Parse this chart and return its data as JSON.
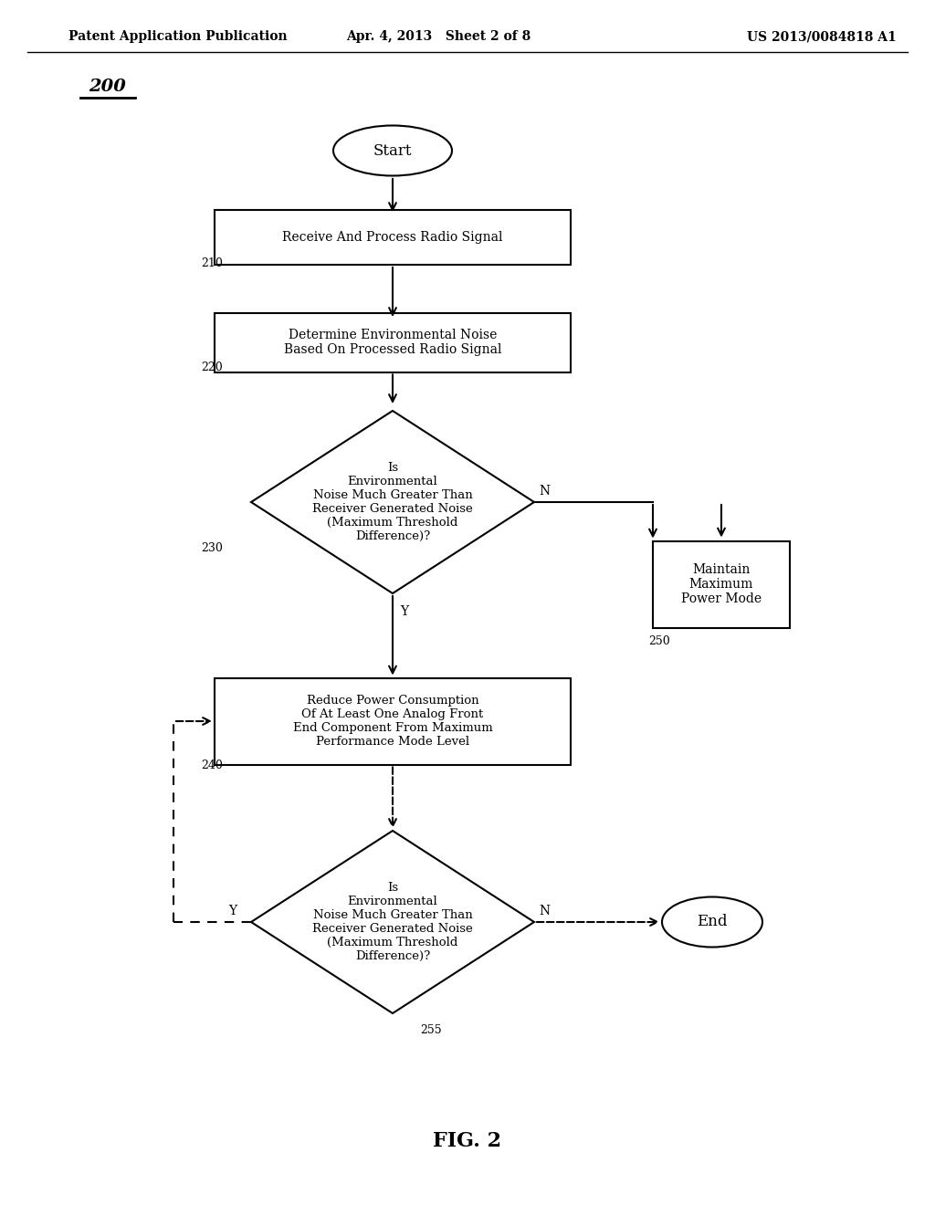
{
  "bg_color": "#ffffff",
  "header_left": "Patent Application Publication",
  "header_mid": "Apr. 4, 2013   Sheet 2 of 8",
  "header_right": "US 2013/0084818 A1",
  "fig_label": "200",
  "footer_label": "FIG. 2",
  "start_text": "Start",
  "box210_text": "Receive And Process Radio Signal",
  "box210_label": "210",
  "box220_text": "Determine Environmental Noise\nBased On Processed Radio Signal",
  "box220_label": "220",
  "diamond230_text": "Is\nEnvironmental\nNoise Much Greater Than\nReceiver Generated Noise\n(Maximum Threshold\nDifference)?",
  "diamond230_label": "230",
  "box250_text": "Maintain\nMaximum\nPower Mode",
  "box250_label": "250",
  "box240_text": "Reduce Power Consumption\nOf At Least One Analog Front\nEnd Component From Maximum\nPerformance Mode Level",
  "box240_label": "240",
  "diamond255_text": "Is\nEnvironmental\nNoise Much Greater Than\nReceiver Generated Noise\n(Maximum Threshold\nDifference)?",
  "diamond255_label": "255",
  "end_text": "End",
  "lw": 1.5,
  "fontsize_header": 10,
  "fontsize_body": 10,
  "fontsize_small": 9
}
